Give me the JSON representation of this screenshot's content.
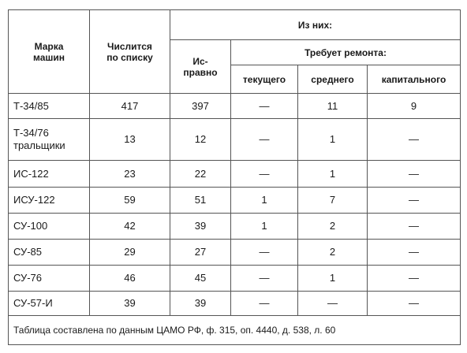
{
  "table": {
    "header": {
      "brand": "Марка\nмашин",
      "listed": "Числится\nпо списку",
      "of_them": "Из них:",
      "operational": "Ис-\nправно",
      "needs_repair": "Требует ремонта:",
      "repair_types": [
        "текущего",
        "среднего",
        "капитального"
      ]
    },
    "rows": [
      [
        "Т-34/85",
        417,
        397,
        "—",
        11,
        9
      ],
      [
        "Т-34/76\nтральщики",
        13,
        12,
        "—",
        1,
        "—"
      ],
      [
        "ИС-122",
        23,
        22,
        "—",
        1,
        "—"
      ],
      [
        "ИСУ-122",
        59,
        51,
        1,
        7,
        "—"
      ],
      [
        "СУ-100",
        42,
        39,
        1,
        2,
        "—"
      ],
      [
        "СУ-85",
        29,
        27,
        "—",
        2,
        "—"
      ],
      [
        "СУ-76",
        46,
        45,
        "—",
        1,
        "—"
      ],
      [
        "СУ-57-И",
        39,
        39,
        "—",
        "—",
        "—"
      ]
    ],
    "note": "Таблица составлена по данным ЦАМО РФ, ф. 315, оп. 4440, д. 538, л. 60"
  }
}
